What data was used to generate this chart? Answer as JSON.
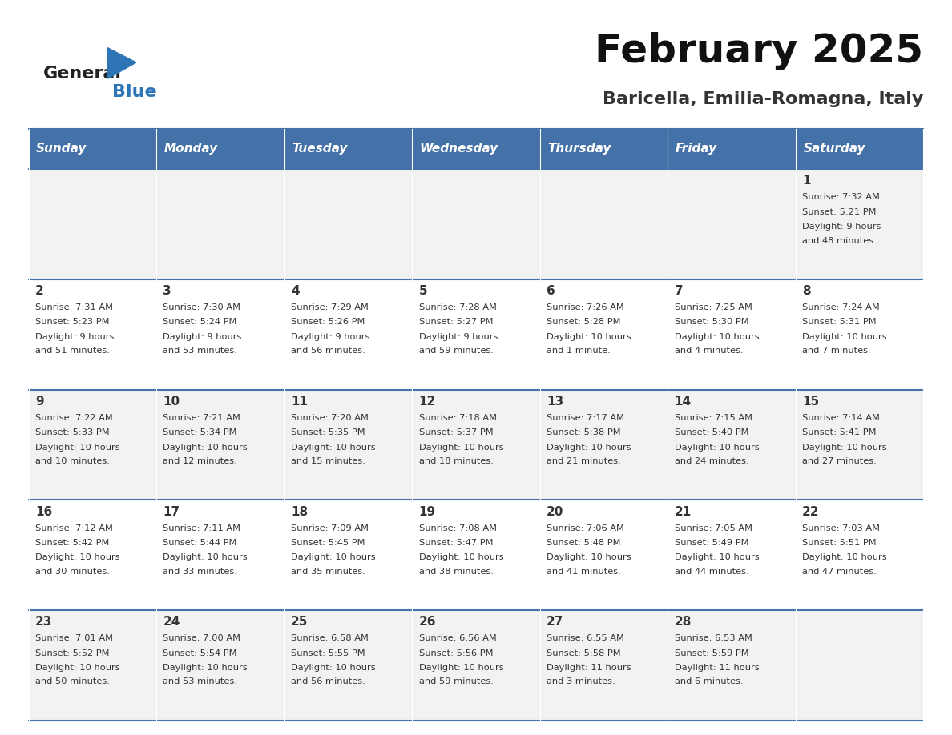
{
  "title": "February 2025",
  "subtitle": "Baricella, Emilia-Romagna, Italy",
  "header_bg": "#4472A8",
  "header_text": "#FFFFFF",
  "row_bg_odd": "#F2F2F2",
  "row_bg_even": "#FFFFFF",
  "cell_text": "#333333",
  "day_headers": [
    "Sunday",
    "Monday",
    "Tuesday",
    "Wednesday",
    "Thursday",
    "Friday",
    "Saturday"
  ],
  "logo_general_color": "#222222",
  "logo_blue_color": "#2E75B6",
  "calendar_data": [
    [
      null,
      null,
      null,
      null,
      null,
      null,
      {
        "day": 1,
        "sunrise": "7:32 AM",
        "sunset": "5:21 PM",
        "daylight": "9 hours\nand 48 minutes."
      }
    ],
    [
      {
        "day": 2,
        "sunrise": "7:31 AM",
        "sunset": "5:23 PM",
        "daylight": "9 hours\nand 51 minutes."
      },
      {
        "day": 3,
        "sunrise": "7:30 AM",
        "sunset": "5:24 PM",
        "daylight": "9 hours\nand 53 minutes."
      },
      {
        "day": 4,
        "sunrise": "7:29 AM",
        "sunset": "5:26 PM",
        "daylight": "9 hours\nand 56 minutes."
      },
      {
        "day": 5,
        "sunrise": "7:28 AM",
        "sunset": "5:27 PM",
        "daylight": "9 hours\nand 59 minutes."
      },
      {
        "day": 6,
        "sunrise": "7:26 AM",
        "sunset": "5:28 PM",
        "daylight": "10 hours\nand 1 minute."
      },
      {
        "day": 7,
        "sunrise": "7:25 AM",
        "sunset": "5:30 PM",
        "daylight": "10 hours\nand 4 minutes."
      },
      {
        "day": 8,
        "sunrise": "7:24 AM",
        "sunset": "5:31 PM",
        "daylight": "10 hours\nand 7 minutes."
      }
    ],
    [
      {
        "day": 9,
        "sunrise": "7:22 AM",
        "sunset": "5:33 PM",
        "daylight": "10 hours\nand 10 minutes."
      },
      {
        "day": 10,
        "sunrise": "7:21 AM",
        "sunset": "5:34 PM",
        "daylight": "10 hours\nand 12 minutes."
      },
      {
        "day": 11,
        "sunrise": "7:20 AM",
        "sunset": "5:35 PM",
        "daylight": "10 hours\nand 15 minutes."
      },
      {
        "day": 12,
        "sunrise": "7:18 AM",
        "sunset": "5:37 PM",
        "daylight": "10 hours\nand 18 minutes."
      },
      {
        "day": 13,
        "sunrise": "7:17 AM",
        "sunset": "5:38 PM",
        "daylight": "10 hours\nand 21 minutes."
      },
      {
        "day": 14,
        "sunrise": "7:15 AM",
        "sunset": "5:40 PM",
        "daylight": "10 hours\nand 24 minutes."
      },
      {
        "day": 15,
        "sunrise": "7:14 AM",
        "sunset": "5:41 PM",
        "daylight": "10 hours\nand 27 minutes."
      }
    ],
    [
      {
        "day": 16,
        "sunrise": "7:12 AM",
        "sunset": "5:42 PM",
        "daylight": "10 hours\nand 30 minutes."
      },
      {
        "day": 17,
        "sunrise": "7:11 AM",
        "sunset": "5:44 PM",
        "daylight": "10 hours\nand 33 minutes."
      },
      {
        "day": 18,
        "sunrise": "7:09 AM",
        "sunset": "5:45 PM",
        "daylight": "10 hours\nand 35 minutes."
      },
      {
        "day": 19,
        "sunrise": "7:08 AM",
        "sunset": "5:47 PM",
        "daylight": "10 hours\nand 38 minutes."
      },
      {
        "day": 20,
        "sunrise": "7:06 AM",
        "sunset": "5:48 PM",
        "daylight": "10 hours\nand 41 minutes."
      },
      {
        "day": 21,
        "sunrise": "7:05 AM",
        "sunset": "5:49 PM",
        "daylight": "10 hours\nand 44 minutes."
      },
      {
        "day": 22,
        "sunrise": "7:03 AM",
        "sunset": "5:51 PM",
        "daylight": "10 hours\nand 47 minutes."
      }
    ],
    [
      {
        "day": 23,
        "sunrise": "7:01 AM",
        "sunset": "5:52 PM",
        "daylight": "10 hours\nand 50 minutes."
      },
      {
        "day": 24,
        "sunrise": "7:00 AM",
        "sunset": "5:54 PM",
        "daylight": "10 hours\nand 53 minutes."
      },
      {
        "day": 25,
        "sunrise": "6:58 AM",
        "sunset": "5:55 PM",
        "daylight": "10 hours\nand 56 minutes."
      },
      {
        "day": 26,
        "sunrise": "6:56 AM",
        "sunset": "5:56 PM",
        "daylight": "10 hours\nand 59 minutes."
      },
      {
        "day": 27,
        "sunrise": "6:55 AM",
        "sunset": "5:58 PM",
        "daylight": "11 hours\nand 3 minutes."
      },
      {
        "day": 28,
        "sunrise": "6:53 AM",
        "sunset": "5:59 PM",
        "daylight": "11 hours\nand 6 minutes."
      },
      null
    ]
  ]
}
